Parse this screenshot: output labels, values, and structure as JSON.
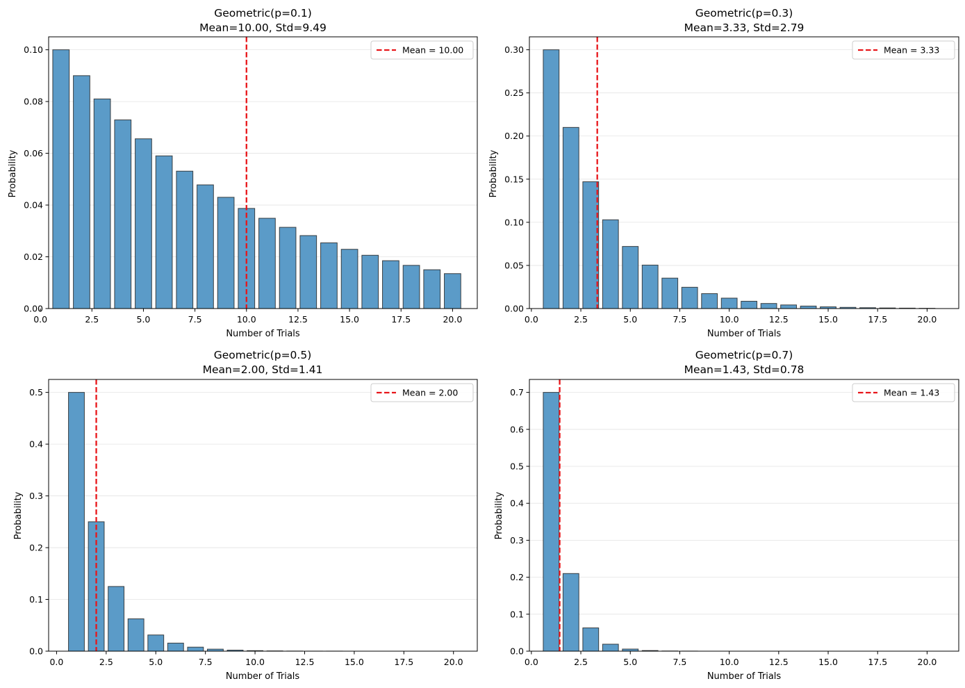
{
  "figure": {
    "background": "#ffffff"
  },
  "chart_data": [
    {
      "type": "bar",
      "title_line1": "Geometric(p=0.1)",
      "title_line2": "Mean=10.00, Std=9.49",
      "xlabel": "Number of Trials",
      "ylabel": "Probability",
      "xlim": [
        0.4,
        21.2
      ],
      "ylim": [
        0,
        0.105
      ],
      "xticks": [
        0.0,
        2.5,
        5.0,
        7.5,
        10.0,
        12.5,
        15.0,
        17.5,
        20.0
      ],
      "xtick_labels": [
        "0.0",
        "2.5",
        "5.0",
        "7.5",
        "10.0",
        "12.5",
        "15.0",
        "17.5",
        "20.0"
      ],
      "yticks": [
        0.0,
        0.02,
        0.04,
        0.06,
        0.08,
        0.1
      ],
      "ytick_labels": [
        "0.00",
        "0.02",
        "0.04",
        "0.06",
        "0.08",
        "0.10"
      ],
      "x": [
        1,
        2,
        3,
        4,
        5,
        6,
        7,
        8,
        9,
        10,
        11,
        12,
        13,
        14,
        15,
        16,
        17,
        18,
        19,
        20
      ],
      "values": [
        0.1,
        0.09,
        0.081,
        0.0729,
        0.0656,
        0.059,
        0.0531,
        0.0478,
        0.043,
        0.0387,
        0.0349,
        0.0314,
        0.0282,
        0.0254,
        0.0229,
        0.0206,
        0.0185,
        0.0167,
        0.015,
        0.0135
      ],
      "bar_color": "#5b9bc8",
      "mean": 10.0,
      "mean_color": "#e8161a",
      "legend_label": "Mean = 10.00",
      "legend_position": "upper right",
      "grid": "y"
    },
    {
      "type": "bar",
      "title_line1": "Geometric(p=0.3)",
      "title_line2": "Mean=3.33, Std=2.79",
      "xlabel": "Number of Trials",
      "ylabel": "Probability",
      "xlim": [
        -0.1,
        21.6
      ],
      "ylim": [
        0,
        0.315
      ],
      "xticks": [
        0.0,
        2.5,
        5.0,
        7.5,
        10.0,
        12.5,
        15.0,
        17.5,
        20.0
      ],
      "xtick_labels": [
        "0.0",
        "2.5",
        "5.0",
        "7.5",
        "10.0",
        "12.5",
        "15.0",
        "17.5",
        "20.0"
      ],
      "yticks": [
        0.0,
        0.05,
        0.1,
        0.15,
        0.2,
        0.25,
        0.3
      ],
      "ytick_labels": [
        "0.00",
        "0.05",
        "0.10",
        "0.15",
        "0.20",
        "0.25",
        "0.30"
      ],
      "x": [
        1,
        2,
        3,
        4,
        5,
        6,
        7,
        8,
        9,
        10,
        11,
        12,
        13,
        14,
        15,
        16,
        17,
        18,
        19,
        20
      ],
      "values": [
        0.3,
        0.21,
        0.147,
        0.1029,
        0.072,
        0.0504,
        0.0353,
        0.0247,
        0.0173,
        0.0121,
        0.0085,
        0.0059,
        0.0042,
        0.0029,
        0.002,
        0.0014,
        0.001,
        0.0007,
        0.0005,
        0.0003
      ],
      "bar_color": "#5b9bc8",
      "mean": 3.33,
      "mean_color": "#e8161a",
      "legend_label": "Mean = 3.33",
      "legend_position": "upper right",
      "grid": "y"
    },
    {
      "type": "bar",
      "title_line1": "Geometric(p=0.5)",
      "title_line2": "Mean=2.00, Std=1.41",
      "xlabel": "Number of Trials",
      "ylabel": "Probability",
      "xlim": [
        -0.4,
        21.2
      ],
      "ylim": [
        0,
        0.525
      ],
      "xticks": [
        0.0,
        2.5,
        5.0,
        7.5,
        10.0,
        12.5,
        15.0,
        17.5,
        20.0
      ],
      "xtick_labels": [
        "0.0",
        "2.5",
        "5.0",
        "7.5",
        "10.0",
        "12.5",
        "15.0",
        "17.5",
        "20.0"
      ],
      "yticks": [
        0.0,
        0.1,
        0.2,
        0.3,
        0.4,
        0.5
      ],
      "ytick_labels": [
        "0.0",
        "0.1",
        "0.2",
        "0.3",
        "0.4",
        "0.5"
      ],
      "x": [
        1,
        2,
        3,
        4,
        5,
        6,
        7,
        8,
        9,
        10,
        11,
        12,
        13,
        14,
        15,
        16,
        17,
        18,
        19,
        20
      ],
      "values": [
        0.5,
        0.25,
        0.125,
        0.0625,
        0.0313,
        0.0156,
        0.0078,
        0.0039,
        0.002,
        0.001,
        0.0005,
        0.0002,
        0.0001,
        0.0001,
        0.0,
        0.0,
        0.0,
        0.0,
        0.0,
        0.0
      ],
      "bar_color": "#5b9bc8",
      "mean": 2.0,
      "mean_color": "#e8161a",
      "legend_label": "Mean = 2.00",
      "legend_position": "upper right",
      "grid": "y"
    },
    {
      "type": "bar",
      "title_line1": "Geometric(p=0.7)",
      "title_line2": "Mean=1.43, Std=0.78",
      "xlabel": "Number of Trials",
      "ylabel": "Probability",
      "xlim": [
        -0.1,
        21.6
      ],
      "ylim": [
        0,
        0.735
      ],
      "xticks": [
        0.0,
        2.5,
        5.0,
        7.5,
        10.0,
        12.5,
        15.0,
        17.5,
        20.0
      ],
      "xtick_labels": [
        "0.0",
        "2.5",
        "5.0",
        "7.5",
        "10.0",
        "12.5",
        "15.0",
        "17.5",
        "20.0"
      ],
      "yticks": [
        0.0,
        0.1,
        0.2,
        0.3,
        0.4,
        0.5,
        0.6,
        0.7
      ],
      "ytick_labels": [
        "0.0",
        "0.1",
        "0.2",
        "0.3",
        "0.4",
        "0.5",
        "0.6",
        "0.7"
      ],
      "x": [
        1,
        2,
        3,
        4,
        5,
        6,
        7,
        8,
        9,
        10,
        11,
        12,
        13,
        14,
        15,
        16,
        17,
        18,
        19,
        20
      ],
      "values": [
        0.7,
        0.21,
        0.063,
        0.0189,
        0.0057,
        0.0017,
        0.0005,
        0.0002,
        0.0,
        0.0,
        0.0,
        0.0,
        0.0,
        0.0,
        0.0,
        0.0,
        0.0,
        0.0,
        0.0,
        0.0
      ],
      "bar_color": "#5b9bc8",
      "mean": 1.43,
      "mean_color": "#e8161a",
      "legend_label": "Mean = 1.43",
      "legend_position": "upper right",
      "grid": "y"
    }
  ]
}
